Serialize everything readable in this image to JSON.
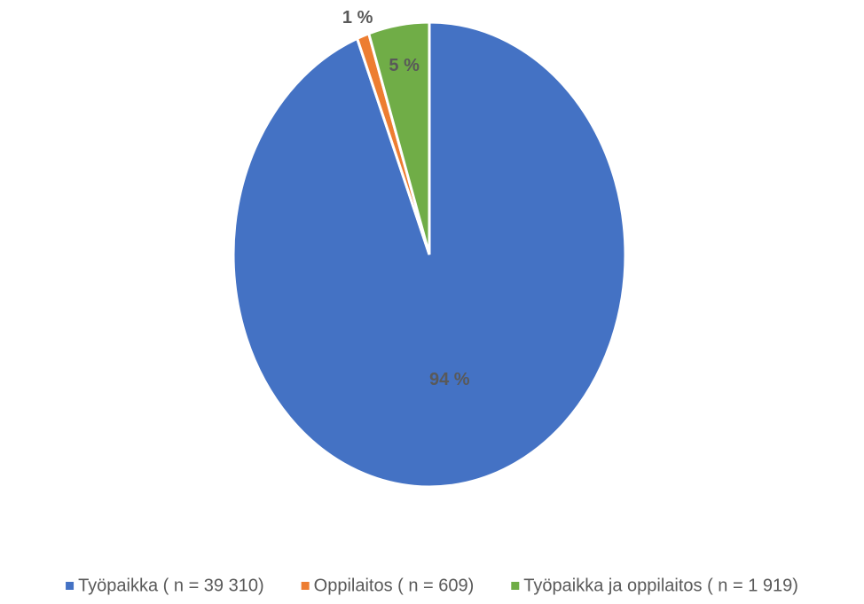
{
  "chart_data": {
    "type": "pie",
    "categories": [
      "Työpaikka ( n = 39 310)",
      "Oppilaitos ( n = 609)",
      "Työpaikka ja oppilaitos ( n = 1 919)"
    ],
    "values": [
      94,
      1,
      5
    ],
    "value_labels": [
      "94 %",
      "1 %",
      "5 %"
    ],
    "colors": [
      "#4472c4",
      "#ed7d31",
      "#70ad47"
    ],
    "legend": "bottom"
  }
}
